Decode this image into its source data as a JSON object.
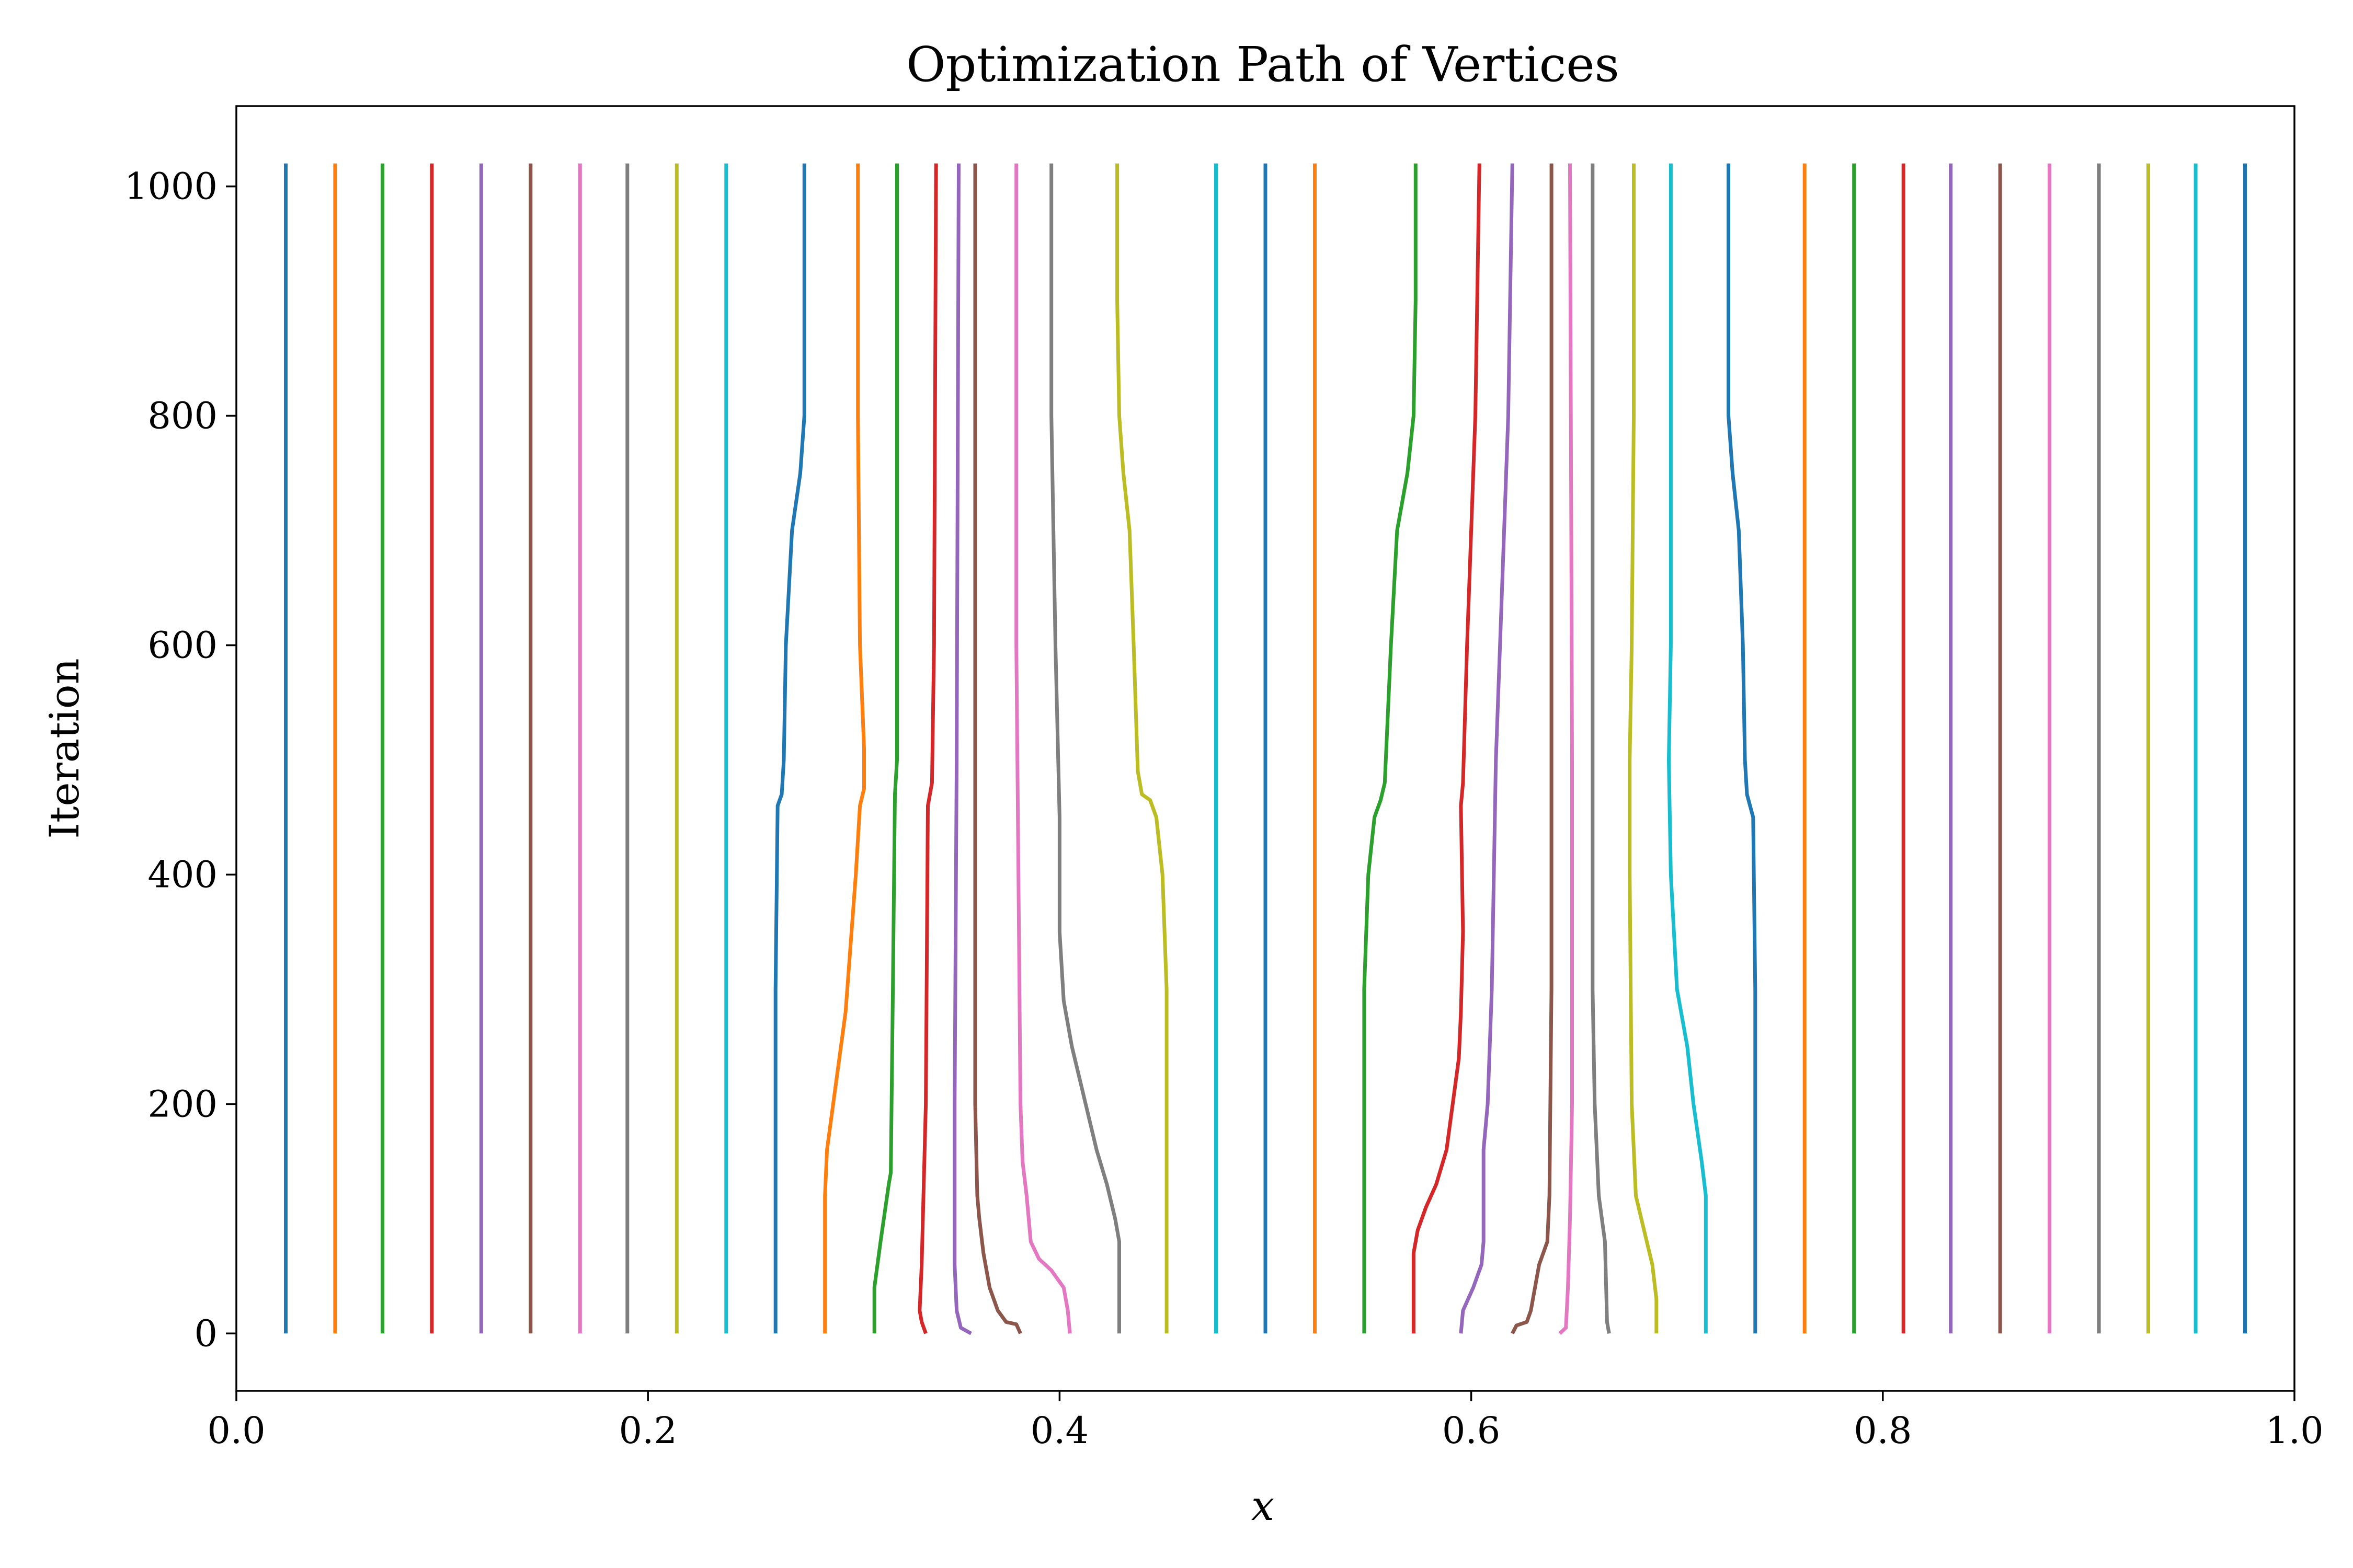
{
  "chart_data": {
    "type": "line",
    "title": "Optimization Path of Vertices",
    "xlabel": "x",
    "ylabel": "Iteration",
    "xlim": [
      0.0,
      1.0
    ],
    "ylim": [
      -50,
      1070
    ],
    "xticks": [
      0.0,
      0.2,
      0.4,
      0.6,
      0.8,
      1.0
    ],
    "xtick_labels": [
      "0.0",
      "0.2",
      "0.4",
      "0.6",
      "0.8",
      "1.0"
    ],
    "yticks": [
      0,
      200,
      400,
      600,
      800,
      1000
    ],
    "ytick_labels": [
      "0",
      "200",
      "400",
      "600",
      "800",
      "1000"
    ],
    "grid": false,
    "legend": "none",
    "palette": [
      "#1f77b4",
      "#ff7f0e",
      "#2ca02c",
      "#d62728",
      "#9467bd",
      "#8c564b",
      "#e377c2",
      "#7f7f7f",
      "#bcbd22",
      "#17becf"
    ],
    "series": [
      {
        "points": [
          [
            0.024,
            0
          ],
          [
            0.024,
            1020
          ]
        ]
      },
      {
        "points": [
          [
            0.048,
            0
          ],
          [
            0.048,
            1020
          ]
        ]
      },
      {
        "points": [
          [
            0.071,
            0
          ],
          [
            0.071,
            1020
          ]
        ]
      },
      {
        "points": [
          [
            0.095,
            0
          ],
          [
            0.095,
            1020
          ]
        ]
      },
      {
        "points": [
          [
            0.119,
            0
          ],
          [
            0.119,
            1020
          ]
        ]
      },
      {
        "points": [
          [
            0.143,
            0
          ],
          [
            0.143,
            1020
          ]
        ]
      },
      {
        "points": [
          [
            0.167,
            0
          ],
          [
            0.167,
            1020
          ]
        ]
      },
      {
        "points": [
          [
            0.19,
            0
          ],
          [
            0.19,
            1020
          ]
        ]
      },
      {
        "points": [
          [
            0.214,
            0
          ],
          [
            0.214,
            1020
          ]
        ]
      },
      {
        "points": [
          [
            0.238,
            0
          ],
          [
            0.238,
            1020
          ]
        ]
      },
      {
        "points": [
          [
            0.262,
            0
          ],
          [
            0.262,
            300
          ],
          [
            0.263,
            460
          ],
          [
            0.265,
            470
          ],
          [
            0.266,
            500
          ],
          [
            0.267,
            600
          ],
          [
            0.27,
            700
          ],
          [
            0.274,
            750
          ],
          [
            0.276,
            800
          ],
          [
            0.276,
            1020
          ]
        ]
      },
      {
        "points": [
          [
            0.286,
            0
          ],
          [
            0.286,
            120
          ],
          [
            0.287,
            160
          ],
          [
            0.29,
            200
          ],
          [
            0.296,
            280
          ],
          [
            0.301,
            400
          ],
          [
            0.303,
            460
          ],
          [
            0.305,
            475
          ],
          [
            0.305,
            510
          ],
          [
            0.303,
            600
          ],
          [
            0.302,
            800
          ],
          [
            0.302,
            1020
          ]
        ]
      },
      {
        "points": [
          [
            0.31,
            0
          ],
          [
            0.31,
            40
          ],
          [
            0.313,
            80
          ],
          [
            0.317,
            130
          ],
          [
            0.318,
            140
          ],
          [
            0.319,
            300
          ],
          [
            0.32,
            470
          ],
          [
            0.321,
            500
          ],
          [
            0.321,
            600
          ],
          [
            0.321,
            1020
          ]
        ]
      },
      {
        "points": [
          [
            0.335,
            0
          ],
          [
            0.333,
            10
          ],
          [
            0.332,
            20
          ],
          [
            0.333,
            60
          ],
          [
            0.335,
            200
          ],
          [
            0.336,
            460
          ],
          [
            0.338,
            480
          ],
          [
            0.339,
            600
          ],
          [
            0.34,
            1020
          ]
        ]
      },
      {
        "points": [
          [
            0.357,
            0
          ],
          [
            0.352,
            5
          ],
          [
            0.35,
            20
          ],
          [
            0.349,
            60
          ],
          [
            0.349,
            200
          ],
          [
            0.35,
            500
          ],
          [
            0.351,
            1020
          ]
        ]
      },
      {
        "points": [
          [
            0.381,
            0
          ],
          [
            0.379,
            8
          ],
          [
            0.374,
            10
          ],
          [
            0.37,
            20
          ],
          [
            0.366,
            40
          ],
          [
            0.363,
            70
          ],
          [
            0.361,
            100
          ],
          [
            0.36,
            120
          ],
          [
            0.359,
            200
          ],
          [
            0.359,
            1020
          ]
        ]
      },
      {
        "points": [
          [
            0.405,
            0
          ],
          [
            0.404,
            20
          ],
          [
            0.402,
            40
          ],
          [
            0.396,
            55
          ],
          [
            0.39,
            65
          ],
          [
            0.386,
            80
          ],
          [
            0.384,
            120
          ],
          [
            0.382,
            150
          ],
          [
            0.381,
            200
          ],
          [
            0.38,
            400
          ],
          [
            0.379,
            600
          ],
          [
            0.379,
            1020
          ]
        ]
      },
      {
        "points": [
          [
            0.429,
            0
          ],
          [
            0.429,
            80
          ],
          [
            0.427,
            100
          ],
          [
            0.423,
            130
          ],
          [
            0.418,
            160
          ],
          [
            0.414,
            190
          ],
          [
            0.41,
            220
          ],
          [
            0.406,
            250
          ],
          [
            0.402,
            290
          ],
          [
            0.4,
            350
          ],
          [
            0.4,
            450
          ],
          [
            0.398,
            600
          ],
          [
            0.397,
            700
          ],
          [
            0.396,
            800
          ],
          [
            0.396,
            1020
          ]
        ]
      },
      {
        "points": [
          [
            0.452,
            0
          ],
          [
            0.452,
            300
          ],
          [
            0.45,
            400
          ],
          [
            0.447,
            450
          ],
          [
            0.444,
            465
          ],
          [
            0.44,
            470
          ],
          [
            0.438,
            490
          ],
          [
            0.436,
            600
          ],
          [
            0.434,
            700
          ],
          [
            0.431,
            750
          ],
          [
            0.429,
            800
          ],
          [
            0.428,
            900
          ],
          [
            0.428,
            1020
          ]
        ]
      },
      {
        "points": [
          [
            0.476,
            0
          ],
          [
            0.476,
            1020
          ]
        ]
      },
      {
        "points": [
          [
            0.5,
            0
          ],
          [
            0.5,
            1020
          ]
        ]
      },
      {
        "points": [
          [
            0.524,
            0
          ],
          [
            0.524,
            1020
          ]
        ]
      },
      {
        "points": [
          [
            0.548,
            0
          ],
          [
            0.548,
            300
          ],
          [
            0.55,
            400
          ],
          [
            0.553,
            450
          ],
          [
            0.556,
            465
          ],
          [
            0.558,
            480
          ],
          [
            0.561,
            600
          ],
          [
            0.564,
            700
          ],
          [
            0.569,
            750
          ],
          [
            0.572,
            800
          ],
          [
            0.573,
            900
          ],
          [
            0.573,
            1020
          ]
        ]
      },
      {
        "points": [
          [
            0.572,
            0
          ],
          [
            0.572,
            70
          ],
          [
            0.574,
            90
          ],
          [
            0.578,
            110
          ],
          [
            0.583,
            130
          ],
          [
            0.588,
            160
          ],
          [
            0.591,
            200
          ],
          [
            0.594,
            240
          ],
          [
            0.595,
            280
          ],
          [
            0.596,
            350
          ],
          [
            0.595,
            460
          ],
          [
            0.596,
            480
          ],
          [
            0.598,
            600
          ],
          [
            0.602,
            800
          ],
          [
            0.604,
            1020
          ]
        ]
      },
      {
        "points": [
          [
            0.595,
            0
          ],
          [
            0.596,
            20
          ],
          [
            0.601,
            40
          ],
          [
            0.605,
            60
          ],
          [
            0.606,
            80
          ],
          [
            0.606,
            160
          ],
          [
            0.608,
            200
          ],
          [
            0.61,
            300
          ],
          [
            0.612,
            500
          ],
          [
            0.614,
            600
          ],
          [
            0.618,
            800
          ],
          [
            0.62,
            1020
          ]
        ]
      },
      {
        "points": [
          [
            0.62,
            0
          ],
          [
            0.622,
            7
          ],
          [
            0.627,
            10
          ],
          [
            0.629,
            20
          ],
          [
            0.633,
            60
          ],
          [
            0.637,
            80
          ],
          [
            0.638,
            120
          ],
          [
            0.639,
            300
          ],
          [
            0.639,
            1020
          ]
        ]
      },
      {
        "points": [
          [
            0.643,
            0
          ],
          [
            0.646,
            5
          ],
          [
            0.647,
            40
          ],
          [
            0.648,
            100
          ],
          [
            0.649,
            200
          ],
          [
            0.649,
            300
          ],
          [
            0.649,
            500
          ],
          [
            0.648,
            1020
          ]
        ]
      },
      {
        "points": [
          [
            0.667,
            0
          ],
          [
            0.666,
            10
          ],
          [
            0.665,
            80
          ],
          [
            0.662,
            120
          ],
          [
            0.66,
            200
          ],
          [
            0.659,
            300
          ],
          [
            0.659,
            1020
          ]
        ]
      },
      {
        "points": [
          [
            0.69,
            0
          ],
          [
            0.69,
            30
          ],
          [
            0.688,
            60
          ],
          [
            0.684,
            90
          ],
          [
            0.68,
            120
          ],
          [
            0.678,
            200
          ],
          [
            0.677,
            400
          ],
          [
            0.677,
            500
          ],
          [
            0.678,
            600
          ],
          [
            0.679,
            800
          ],
          [
            0.679,
            1020
          ]
        ]
      },
      {
        "points": [
          [
            0.714,
            0
          ],
          [
            0.714,
            120
          ],
          [
            0.712,
            150
          ],
          [
            0.708,
            200
          ],
          [
            0.705,
            250
          ],
          [
            0.7,
            300
          ],
          [
            0.697,
            400
          ],
          [
            0.696,
            500
          ],
          [
            0.697,
            600
          ],
          [
            0.697,
            1020
          ]
        ]
      },
      {
        "points": [
          [
            0.738,
            0
          ],
          [
            0.738,
            300
          ],
          [
            0.737,
            450
          ],
          [
            0.734,
            470
          ],
          [
            0.733,
            500
          ],
          [
            0.732,
            600
          ],
          [
            0.73,
            700
          ],
          [
            0.727,
            750
          ],
          [
            0.725,
            800
          ],
          [
            0.725,
            1020
          ]
        ]
      },
      {
        "points": [
          [
            0.762,
            0
          ],
          [
            0.762,
            1020
          ]
        ]
      },
      {
        "points": [
          [
            0.786,
            0
          ],
          [
            0.786,
            1020
          ]
        ]
      },
      {
        "points": [
          [
            0.81,
            0
          ],
          [
            0.81,
            1020
          ]
        ]
      },
      {
        "points": [
          [
            0.833,
            0
          ],
          [
            0.833,
            1020
          ]
        ]
      },
      {
        "points": [
          [
            0.857,
            0
          ],
          [
            0.857,
            1020
          ]
        ]
      },
      {
        "points": [
          [
            0.881,
            0
          ],
          [
            0.881,
            1020
          ]
        ]
      },
      {
        "points": [
          [
            0.905,
            0
          ],
          [
            0.905,
            1020
          ]
        ]
      },
      {
        "points": [
          [
            0.929,
            0
          ],
          [
            0.929,
            1020
          ]
        ]
      },
      {
        "points": [
          [
            0.952,
            0
          ],
          [
            0.952,
            1020
          ]
        ]
      },
      {
        "points": [
          [
            0.976,
            0
          ],
          [
            0.976,
            1020
          ]
        ]
      }
    ]
  }
}
